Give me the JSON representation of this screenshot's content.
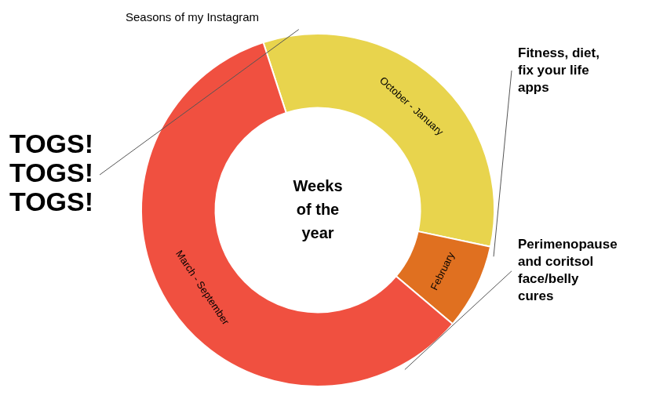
{
  "chart_data": {
    "type": "doughnut",
    "title": "Seasons of my Instagram",
    "center_text": "Weeks\nof the\nyear",
    "categories": [
      "October - January",
      "February",
      "March - September"
    ],
    "values": [
      17,
      4,
      30
    ],
    "colors": [
      "#E8D44D",
      "#E07020",
      "#F05040"
    ],
    "annotations": [
      "TOGS!\nTOGS!\nTOGS!",
      "Fitness, diet,\nfix your life\napps",
      "Perimenopause\nand coritsol\nface/belly\ncures"
    ]
  }
}
